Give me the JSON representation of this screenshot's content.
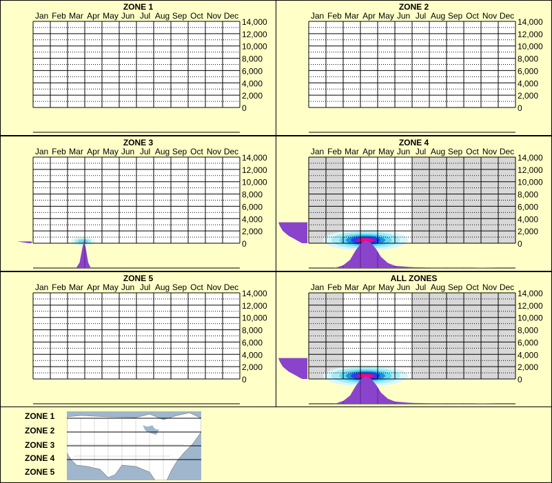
{
  "chart_data": [
    {
      "type": "heatmap",
      "title": "ZONE 1",
      "months": [
        "Jan",
        "Feb",
        "Mar",
        "Apr",
        "May",
        "Jun",
        "Jul",
        "Aug",
        "Sep",
        "Oct",
        "Nov",
        "Dec"
      ],
      "y_ticks": [
        "14,000",
        "12,000",
        "10,000",
        "8,000",
        "6,000",
        "4,000",
        "2,000",
        "0"
      ],
      "ylim": [
        0,
        14000
      ],
      "elevation_profile": [],
      "month_profile": [],
      "hotspots": [],
      "shaded_months": []
    },
    {
      "type": "heatmap",
      "title": "ZONE 2",
      "months": [
        "Jan",
        "Feb",
        "Mar",
        "Apr",
        "May",
        "Jun",
        "Jul",
        "Aug",
        "Sep",
        "Oct",
        "Nov",
        "Dec"
      ],
      "y_ticks": [
        "14,000",
        "12,000",
        "10,000",
        "8,000",
        "6,000",
        "4,000",
        "2,000",
        "0"
      ],
      "ylim": [
        0,
        14000
      ],
      "elevation_profile": [],
      "month_profile": [],
      "hotspots": [],
      "shaded_months": []
    },
    {
      "type": "heatmap",
      "title": "ZONE 3",
      "months": [
        "Jan",
        "Feb",
        "Mar",
        "Apr",
        "May",
        "Jun",
        "Jul",
        "Aug",
        "Sep",
        "Oct",
        "Nov",
        "Dec"
      ],
      "y_ticks": [
        "14,000",
        "12,000",
        "10,000",
        "8,000",
        "6,000",
        "4,000",
        "2,000",
        "0"
      ],
      "ylim": [
        0,
        14000
      ],
      "elevation_profile": [
        [
          0,
          0.12
        ],
        [
          300,
          0.5
        ]
      ],
      "month_profile": [
        [
          2.5,
          0
        ],
        [
          2.7,
          0.2
        ],
        [
          2.85,
          0.7
        ],
        [
          2.95,
          1
        ],
        [
          3.05,
          0.75
        ],
        [
          3.2,
          0.2
        ],
        [
          3.35,
          0
        ]
      ],
      "hotspots": [
        {
          "month": 2.9,
          "elev": 300,
          "intensity": 0.3,
          "sx": 0.35,
          "sy": 350
        }
      ],
      "shaded_months": []
    },
    {
      "type": "heatmap",
      "title": "ZONE 4",
      "months": [
        "Jan",
        "Feb",
        "Mar",
        "Apr",
        "May",
        "Jun",
        "Jul",
        "Aug",
        "Sep",
        "Oct",
        "Nov",
        "Dec"
      ],
      "y_ticks": [
        "14,000",
        "12,000",
        "10,000",
        "8,000",
        "6,000",
        "4,000",
        "2,000",
        "0"
      ],
      "ylim": [
        0,
        14000
      ],
      "elevation_profile": [
        [
          0,
          0.18
        ],
        [
          300,
          0.3
        ],
        [
          700,
          0.45
        ],
        [
          1200,
          0.65
        ],
        [
          2000,
          0.85
        ],
        [
          2800,
          0.95
        ],
        [
          3400,
          1
        ]
      ],
      "month_profile": [
        [
          1.5,
          0
        ],
        [
          2.0,
          0.1
        ],
        [
          2.4,
          0.3
        ],
        [
          2.7,
          0.62
        ],
        [
          3.0,
          0.88
        ],
        [
          3.3,
          1
        ],
        [
          3.6,
          0.92
        ],
        [
          3.9,
          0.7
        ],
        [
          4.2,
          0.4
        ],
        [
          4.6,
          0.18
        ],
        [
          5.0,
          0.08
        ],
        [
          5.6,
          0.05
        ],
        [
          6.0,
          0.03
        ],
        [
          7,
          0.02
        ],
        [
          8.5,
          0.02
        ],
        [
          9.5,
          0.02
        ],
        [
          11,
          0
        ]
      ],
      "hotspots": [
        {
          "month": 3.3,
          "elev": 500,
          "intensity": 1,
          "sx": 0.95,
          "sy": 650
        }
      ],
      "shaded_months": [
        0,
        1,
        6,
        7,
        8,
        9,
        10,
        11
      ]
    },
    {
      "type": "heatmap",
      "title": "ZONE 5",
      "months": [
        "Jan",
        "Feb",
        "Mar",
        "Apr",
        "May",
        "Jun",
        "Jul",
        "Aug",
        "Sep",
        "Oct",
        "Nov",
        "Dec"
      ],
      "y_ticks": [
        "14,000",
        "12,000",
        "10,000",
        "8,000",
        "6,000",
        "4,000",
        "2,000",
        "0"
      ],
      "ylim": [
        0,
        14000
      ],
      "elevation_profile": [],
      "month_profile": [],
      "hotspots": [],
      "shaded_months": []
    },
    {
      "type": "heatmap",
      "title": "ALL ZONES",
      "months": [
        "Jan",
        "Feb",
        "Mar",
        "Apr",
        "May",
        "Jun",
        "Jul",
        "Aug",
        "Sep",
        "Oct",
        "Nov",
        "Dec"
      ],
      "y_ticks": [
        "14,000",
        "12,000",
        "10,000",
        "8,000",
        "6,000",
        "4,000",
        "2,000",
        "0"
      ],
      "ylim": [
        0,
        14000
      ],
      "elevation_profile": [
        [
          0,
          0.18
        ],
        [
          300,
          0.3
        ],
        [
          700,
          0.45
        ],
        [
          1200,
          0.65
        ],
        [
          2000,
          0.85
        ],
        [
          2800,
          0.95
        ],
        [
          3400,
          1
        ]
      ],
      "month_profile": [
        [
          1.5,
          0
        ],
        [
          2.0,
          0.1
        ],
        [
          2.4,
          0.3
        ],
        [
          2.7,
          0.62
        ],
        [
          3.0,
          0.88
        ],
        [
          3.3,
          1
        ],
        [
          3.6,
          0.92
        ],
        [
          3.9,
          0.7
        ],
        [
          4.2,
          0.4
        ],
        [
          4.6,
          0.18
        ],
        [
          5.0,
          0.08
        ],
        [
          5.6,
          0.05
        ],
        [
          6.0,
          0.03
        ],
        [
          7,
          0.02
        ],
        [
          8.5,
          0.02
        ],
        [
          9.5,
          0.02
        ],
        [
          11,
          0
        ]
      ],
      "hotspots": [
        {
          "month": 3.3,
          "elev": 500,
          "intensity": 1,
          "sx": 0.95,
          "sy": 650
        }
      ],
      "shaded_months": [
        0,
        1,
        6,
        7,
        8,
        9,
        10,
        11
      ]
    }
  ],
  "legend": {
    "zones": [
      "ZONE 1",
      "ZONE 2",
      "ZONE 3",
      "ZONE 4",
      "ZONE 5"
    ]
  },
  "colors": {
    "background": "#ffffc8",
    "profile": "#8a44cc",
    "grid": "#000000",
    "shade": "#d8d8d8",
    "hot": "#ff0080",
    "mid": "#2040ff",
    "cool": "#60e0ff"
  }
}
